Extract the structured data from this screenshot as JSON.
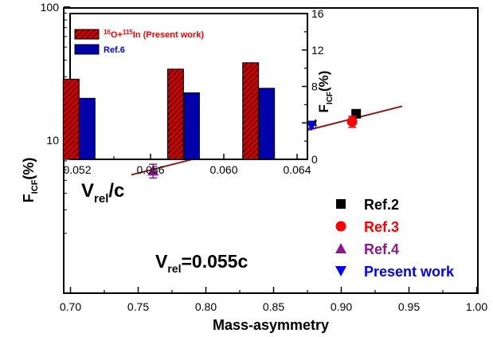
{
  "chart_data": [
    {
      "type": "scatter",
      "xlabel": "Mass-asymmetry",
      "ylabel": {
        "main": "F",
        "sub": "ICF",
        "unit": "(%)"
      },
      "xlim": [
        0.7,
        1.0
      ],
      "ylim": [
        2,
        100
      ],
      "yscale": "log",
      "xticks": [
        "0.70",
        "0.75",
        "0.80",
        "0.85",
        "0.90",
        "0.95",
        "1.00"
      ],
      "yticks": [
        {
          "value": 10,
          "label": "10"
        },
        {
          "value": 100,
          "label": "100"
        }
      ],
      "annotation": {
        "prefix": "V",
        "sub": "rel",
        "rest": "=0.055c"
      },
      "legend_position": "right",
      "series": [
        {
          "name": "Ref.2",
          "color": "#000000",
          "marker": "square",
          "points": [
            {
              "x": 0.911,
              "y": 15.8,
              "err": 1.0
            }
          ]
        },
        {
          "name": "Ref.3",
          "color": "#ff0000",
          "marker": "circle",
          "points": [
            {
              "x": 0.908,
              "y": 13.8,
              "err": 1.3
            }
          ]
        },
        {
          "name": "Ref.4",
          "color": "#8b1a8b",
          "marker": "triangle-up",
          "points": [
            {
              "x": 0.761,
              "y": 5.9,
              "err": 0.7
            }
          ]
        },
        {
          "name": "Present work",
          "color": "#0000ff",
          "marker": "triangle-down",
          "points": [
            {
              "x": 0.878,
              "y": 12.9,
              "err": 0.6
            }
          ]
        }
      ],
      "fit_line": {
        "color": "#8b1a1a",
        "points": [
          {
            "x": 0.745,
            "y": 5.5
          },
          {
            "x": 0.945,
            "y": 18.0
          }
        ]
      }
    },
    {
      "type": "bar",
      "inset": true,
      "xlabel": {
        "main": "V",
        "sub": "rel",
        "rest": "/c"
      },
      "ylabel": {
        "main": "F",
        "sub": "ICF",
        "unit": "(%)"
      },
      "xlim": [
        0.05,
        0.064
      ],
      "ylim": [
        0,
        16
      ],
      "xticks": [
        "0.052",
        "0.056",
        "0.060",
        "0.064"
      ],
      "yticks": [
        "0",
        "4",
        "8",
        "12",
        "16"
      ],
      "categories": [
        0.0521,
        0.0578,
        0.0619
      ],
      "series": [
        {
          "name_parts": {
            "sup1": "16",
            "a": "O+",
            "sup2": "115",
            "b": "In (Present work)"
          },
          "color": "#cc0000",
          "pattern": "hatched",
          "values": [
            8.8,
            9.9,
            10.6
          ]
        },
        {
          "name": "Ref.6",
          "color": "#0000aa",
          "values": [
            6.7,
            7.3,
            7.8
          ]
        }
      ]
    }
  ]
}
